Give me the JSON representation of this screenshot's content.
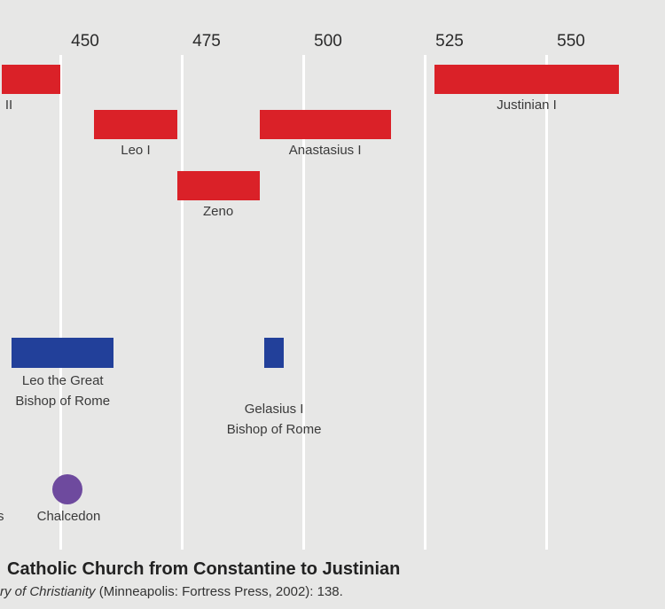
{
  "chart_data": {
    "type": "timeline",
    "x_ticks": [
      450,
      475,
      500,
      525,
      550
    ],
    "xlim": [
      438,
      568
    ],
    "colors": {
      "emperor": "#da2128",
      "bishop": "#22409a",
      "council": "#6e4a9e",
      "grid": "#ffffff",
      "background": "#e7e7e6"
    },
    "emperors": [
      {
        "name": "II",
        "start": 438,
        "end": 450,
        "row": 1
      },
      {
        "name": "Leo I",
        "start": 457,
        "end": 474,
        "row": 2
      },
      {
        "name": "Zeno",
        "start": 474,
        "end": 491,
        "row": 3
      },
      {
        "name": "Anastasius I",
        "start": 491,
        "end": 518,
        "row": 2
      },
      {
        "name": "Justinian I",
        "start": 527,
        "end": 565,
        "row": 1
      }
    ],
    "bishops": [
      {
        "name": "Leo the Great",
        "subtitle": "Bishop of Rome",
        "start": 440,
        "end": 461
      },
      {
        "name": "Gelasius I",
        "subtitle": "Bishop of Rome",
        "start": 492,
        "end": 496
      }
    ],
    "events": [
      {
        "name": "Chalcedon",
        "year": 451
      }
    ],
    "left_partial_labels": [
      "s"
    ]
  },
  "caption": {
    "title": "Catholic Church from Constantine to Justinian",
    "source_italic": "ry of Christianity",
    "source_rest": " (Minneapolis: Fortress Press, 2002): 138."
  }
}
